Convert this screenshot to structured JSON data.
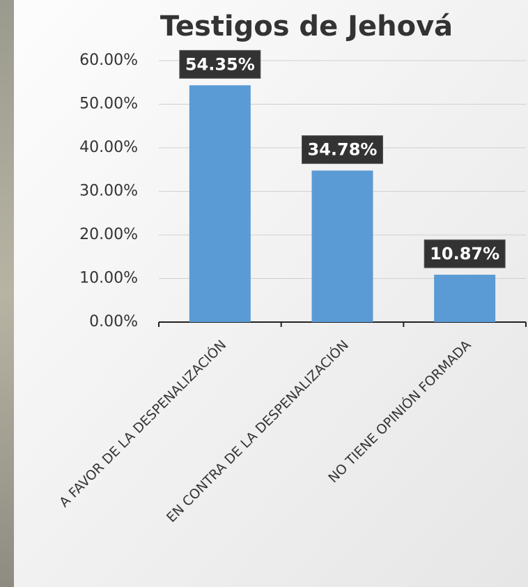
{
  "chart_data": {
    "type": "bar",
    "title": "Testigos de Jehová",
    "categories": [
      "A FAVOR DE LA DESPENALIZACIÓN",
      "EN CONTRA DE LA DESPENALIZACIÓN",
      "NO TIENE OPINIÓN FORMADA"
    ],
    "values": [
      54.35,
      34.78,
      10.87
    ],
    "value_labels": [
      "54.35%",
      "34.78%",
      "10.87%"
    ],
    "color": "#5b9bd5",
    "ylim": [
      0,
      60
    ],
    "yticks": [
      {
        "value": 0,
        "label": "0.00%"
      },
      {
        "value": 10,
        "label": "10.00%"
      },
      {
        "value": 20,
        "label": "20.00%"
      },
      {
        "value": 30,
        "label": "30.00%"
      },
      {
        "value": 40,
        "label": "40.00%"
      },
      {
        "value": 50,
        "label": "50.00%"
      },
      {
        "value": 60,
        "label": "60.00%"
      }
    ],
    "grid": true
  }
}
